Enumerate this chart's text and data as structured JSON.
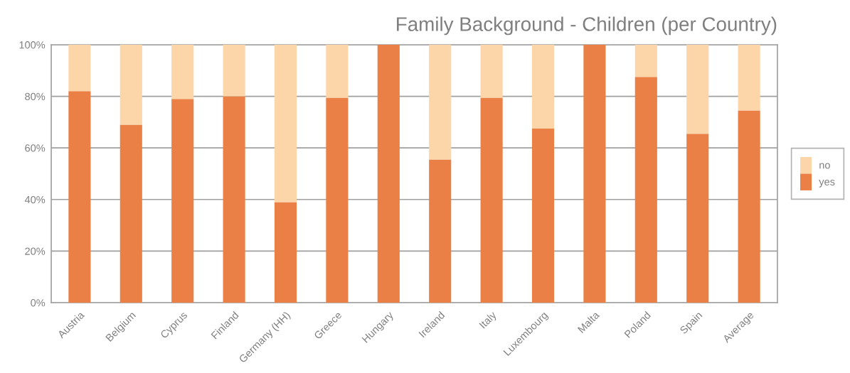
{
  "chart_data": {
    "type": "bar",
    "title": "Family Background - Children (per Country)",
    "categories": [
      "Austria",
      "Belgium",
      "Cyprus",
      "Finland",
      "Germany (HH)",
      "Greece",
      "Hungary",
      "Ireland",
      "Italy",
      "Luxembourg",
      "Malta",
      "Poland",
      "Spain",
      "Average"
    ],
    "series": [
      {
        "name": "yes",
        "color": "#eb8046",
        "values": [
          82,
          69,
          79,
          80,
          39,
          79.5,
          100,
          55.5,
          79.5,
          67.5,
          100,
          87.5,
          65.5,
          74.5
        ]
      },
      {
        "name": "no",
        "color": "#fcd6a8",
        "values": [
          18,
          31,
          21,
          20,
          61,
          20.5,
          0,
          44.5,
          20.5,
          32.5,
          0,
          12.5,
          34.5,
          25.5
        ]
      }
    ],
    "stacked": true,
    "ylim": [
      0,
      100
    ],
    "yticks": [
      {
        "value": 0,
        "label": "0%"
      },
      {
        "value": 20,
        "label": "20%"
      },
      {
        "value": 40,
        "label": "40%"
      },
      {
        "value": 60,
        "label": "60%"
      },
      {
        "value": 80,
        "label": "80%"
      },
      {
        "value": 100,
        "label": "100%"
      }
    ],
    "grid": "y",
    "legend": "right"
  }
}
